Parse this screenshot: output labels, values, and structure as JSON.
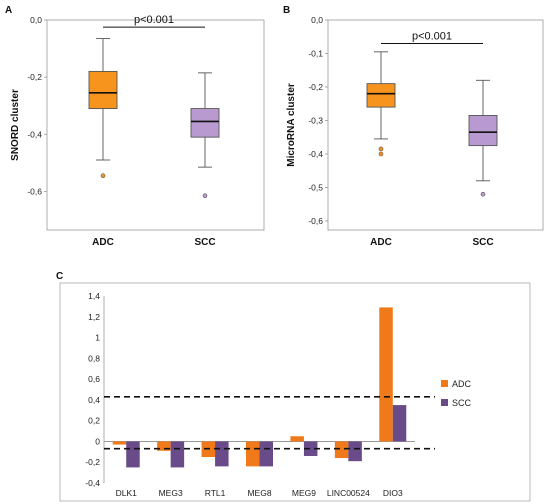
{
  "panels": [
    {
      "label": "A",
      "chart_data": {
        "type": "box",
        "ylabel": "SNORD cluster",
        "ylim": [
          -0.7,
          0.0
        ],
        "yticks": [
          0.0,
          -0.2,
          -0.4,
          -0.6
        ],
        "ytick_labels": [
          "0,0",
          "-0,2",
          "-0,4",
          "-0,6"
        ],
        "categories": [
          "ADC",
          "SCC"
        ],
        "boxes": [
          {
            "category": "ADC",
            "whisker_high": -0.065,
            "q3": -0.18,
            "median": -0.255,
            "q1": -0.31,
            "whisker_low": -0.49,
            "outliers": [
              -0.545
            ],
            "color": "#f7941d"
          },
          {
            "category": "SCC",
            "whisker_high": -0.185,
            "q3": -0.31,
            "median": -0.355,
            "q1": -0.41,
            "whisker_low": -0.515,
            "outliers": [
              -0.615
            ],
            "color": "#b89ad0"
          }
        ],
        "annotation": "p<0.001",
        "annotation_y": -0.025
      }
    },
    {
      "label": "B",
      "chart_data": {
        "type": "box",
        "ylabel": "MicroRNA cluster",
        "ylim": [
          -0.6,
          0.0
        ],
        "yticks": [
          0.0,
          -0.1,
          -0.2,
          -0.3,
          -0.4,
          -0.5,
          -0.6
        ],
        "ytick_labels": [
          "0,0",
          "-0,1",
          "-0,2",
          "-0,3",
          "-0,4",
          "-0,5",
          "-0,6"
        ],
        "categories": [
          "ADC",
          "SCC"
        ],
        "boxes": [
          {
            "category": "ADC",
            "whisker_high": -0.095,
            "q3": -0.19,
            "median": -0.22,
            "q1": -0.26,
            "whisker_low": -0.355,
            "outliers": [
              -0.385,
              -0.4
            ],
            "color": "#f7941d"
          },
          {
            "category": "SCC",
            "whisker_high": -0.18,
            "q3": -0.285,
            "median": -0.335,
            "q1": -0.375,
            "whisker_low": -0.48,
            "outliers": [
              -0.52
            ],
            "color": "#b89ad0"
          }
        ],
        "annotation": "p<0.001",
        "annotation_y": -0.07
      }
    },
    {
      "label": "C",
      "chart_data": {
        "type": "bar",
        "categories": [
          "DLK1",
          "MEG3",
          "RTL1",
          "MEG8",
          "MEG9",
          "LINC00524",
          "DIO3"
        ],
        "series": [
          {
            "name": "ADC",
            "color": "#f07a1a",
            "values": [
              -0.03,
              -0.09,
              -0.15,
              -0.24,
              0.05,
              -0.16,
              1.29
            ]
          },
          {
            "name": "SCC",
            "color": "#6a4b8a",
            "values": [
              -0.25,
              -0.25,
              -0.24,
              -0.24,
              -0.14,
              -0.19,
              0.35
            ]
          }
        ],
        "ylim": [
          -0.4,
          1.4
        ],
        "yticks": [
          1.4,
          1.2,
          1.0,
          0.8,
          0.6,
          0.4,
          0.2,
          0.0,
          -0.2,
          -0.4
        ],
        "ytick_labels": [
          "1,4",
          "1,2",
          "1",
          "0,8",
          "0,6",
          "0,4",
          "0,2",
          "0",
          "-0,2",
          "-0,4"
        ],
        "reference_lines": [
          0.43,
          -0.07
        ],
        "legend_position": "right"
      }
    }
  ]
}
